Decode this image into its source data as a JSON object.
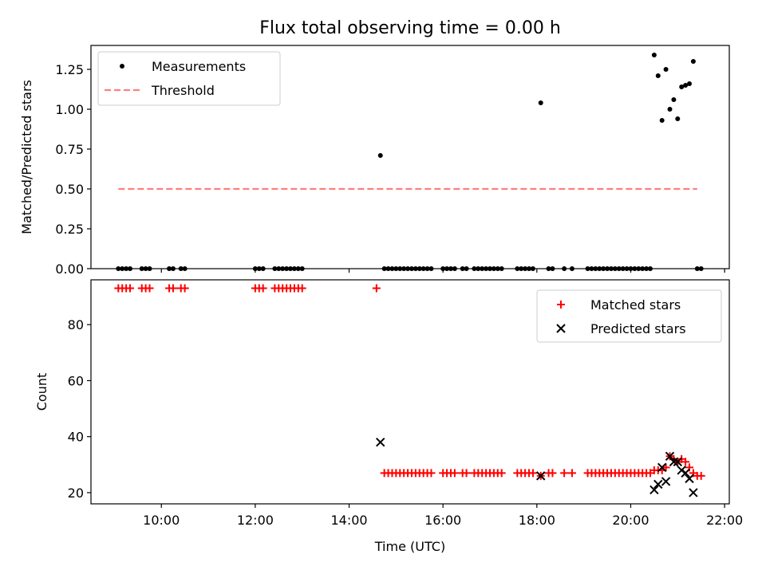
{
  "title": "Flux total observing time = 0.00 h",
  "chart_data": [
    {
      "type": "scatter",
      "title": "Flux total observing time = 0.00 h",
      "xlabel": "",
      "ylabel": "Matched/Predicted stars",
      "xlim": [
        "08:30",
        "22:06"
      ],
      "ylim": [
        0,
        1.4
      ],
      "yticks": [
        "0.00",
        "0.25",
        "0.50",
        "0.75",
        "1.00",
        "1.25"
      ],
      "legend_position": "top-left",
      "grid": false,
      "series": [
        {
          "name": "Measurements",
          "marker": "dot",
          "color": "#000000",
          "points": [
            [
              "09:05",
              0
            ],
            [
              "09:10",
              0
            ],
            [
              "09:15",
              0
            ],
            [
              "09:20",
              0
            ],
            [
              "09:35",
              0
            ],
            [
              "09:40",
              0
            ],
            [
              "09:45",
              0
            ],
            [
              "10:10",
              0
            ],
            [
              "10:15",
              0
            ],
            [
              "10:25",
              0
            ],
            [
              "10:30",
              0
            ],
            [
              "12:00",
              0
            ],
            [
              "12:05",
              0
            ],
            [
              "12:10",
              0
            ],
            [
              "12:25",
              0
            ],
            [
              "12:30",
              0
            ],
            [
              "12:35",
              0
            ],
            [
              "12:40",
              0
            ],
            [
              "12:45",
              0
            ],
            [
              "12:50",
              0
            ],
            [
              "12:55",
              0
            ],
            [
              "13:00",
              0
            ],
            [
              "14:40",
              0.71
            ],
            [
              "14:45",
              0
            ],
            [
              "14:50",
              0
            ],
            [
              "14:55",
              0
            ],
            [
              "15:00",
              0
            ],
            [
              "15:05",
              0
            ],
            [
              "15:10",
              0
            ],
            [
              "15:15",
              0
            ],
            [
              "15:20",
              0
            ],
            [
              "15:25",
              0
            ],
            [
              "15:30",
              0
            ],
            [
              "15:35",
              0
            ],
            [
              "15:40",
              0
            ],
            [
              "15:45",
              0
            ],
            [
              "16:00",
              0
            ],
            [
              "16:05",
              0
            ],
            [
              "16:10",
              0
            ],
            [
              "16:15",
              0
            ],
            [
              "16:25",
              0
            ],
            [
              "16:30",
              0
            ],
            [
              "16:40",
              0
            ],
            [
              "16:45",
              0
            ],
            [
              "16:50",
              0
            ],
            [
              "16:55",
              0
            ],
            [
              "17:00",
              0
            ],
            [
              "17:05",
              0
            ],
            [
              "17:10",
              0
            ],
            [
              "17:15",
              0
            ],
            [
              "17:35",
              0
            ],
            [
              "17:40",
              0
            ],
            [
              "17:45",
              0
            ],
            [
              "17:50",
              0
            ],
            [
              "17:55",
              0
            ],
            [
              "18:05",
              1.04
            ],
            [
              "18:15",
              0
            ],
            [
              "18:20",
              0
            ],
            [
              "18:35",
              0
            ],
            [
              "18:45",
              0
            ],
            [
              "19:05",
              0
            ],
            [
              "19:10",
              0
            ],
            [
              "19:15",
              0
            ],
            [
              "19:20",
              0
            ],
            [
              "19:25",
              0
            ],
            [
              "19:30",
              0
            ],
            [
              "19:35",
              0
            ],
            [
              "19:40",
              0
            ],
            [
              "19:45",
              0
            ],
            [
              "19:50",
              0
            ],
            [
              "19:55",
              0
            ],
            [
              "20:00",
              0
            ],
            [
              "20:05",
              0
            ],
            [
              "20:10",
              0
            ],
            [
              "20:15",
              0
            ],
            [
              "20:20",
              0
            ],
            [
              "20:25",
              0
            ],
            [
              "20:30",
              1.34
            ],
            [
              "20:35",
              1.21
            ],
            [
              "20:40",
              0.93
            ],
            [
              "20:45",
              1.25
            ],
            [
              "20:50",
              1.0
            ],
            [
              "20:55",
              1.06
            ],
            [
              "21:00",
              0.94
            ],
            [
              "21:05",
              1.14
            ],
            [
              "21:10",
              1.15
            ],
            [
              "21:15",
              1.16
            ],
            [
              "21:20",
              1.3
            ],
            [
              "21:25",
              0
            ],
            [
              "21:30",
              0
            ]
          ]
        },
        {
          "name": "Threshold",
          "marker": "dashed-line",
          "color": "#ff7f7f",
          "points": [
            [
              "09:05",
              0.5
            ],
            [
              "21:25",
              0.5
            ]
          ]
        }
      ]
    },
    {
      "type": "scatter",
      "xlabel": "Time (UTC)",
      "ylabel": "Count",
      "xlim": [
        "08:30",
        "22:06"
      ],
      "ylim": [
        16,
        96
      ],
      "xticks": [
        "10:00",
        "12:00",
        "14:00",
        "16:00",
        "18:00",
        "20:00",
        "22:00"
      ],
      "yticks": [
        "20",
        "40",
        "60",
        "80"
      ],
      "legend_position": "top-right",
      "grid": false,
      "series": [
        {
          "name": "Matched stars",
          "marker": "plus",
          "color": "#ff0000",
          "points": [
            [
              "09:05",
              93
            ],
            [
              "09:10",
              93
            ],
            [
              "09:15",
              93
            ],
            [
              "09:20",
              93
            ],
            [
              "09:35",
              93
            ],
            [
              "09:40",
              93
            ],
            [
              "09:45",
              93
            ],
            [
              "10:10",
              93
            ],
            [
              "10:15",
              93
            ],
            [
              "10:25",
              93
            ],
            [
              "10:30",
              93
            ],
            [
              "12:00",
              93
            ],
            [
              "12:05",
              93
            ],
            [
              "12:10",
              93
            ],
            [
              "12:25",
              93
            ],
            [
              "12:30",
              93
            ],
            [
              "12:35",
              93
            ],
            [
              "12:40",
              93
            ],
            [
              "12:45",
              93
            ],
            [
              "12:50",
              93
            ],
            [
              "12:55",
              93
            ],
            [
              "13:00",
              93
            ],
            [
              "14:35",
              93
            ],
            [
              "14:45",
              27
            ],
            [
              "14:50",
              27
            ],
            [
              "14:55",
              27
            ],
            [
              "15:00",
              27
            ],
            [
              "15:05",
              27
            ],
            [
              "15:10",
              27
            ],
            [
              "15:15",
              27
            ],
            [
              "15:20",
              27
            ],
            [
              "15:25",
              27
            ],
            [
              "15:30",
              27
            ],
            [
              "15:35",
              27
            ],
            [
              "15:40",
              27
            ],
            [
              "15:45",
              27
            ],
            [
              "16:00",
              27
            ],
            [
              "16:05",
              27
            ],
            [
              "16:10",
              27
            ],
            [
              "16:15",
              27
            ],
            [
              "16:25",
              27
            ],
            [
              "16:30",
              27
            ],
            [
              "16:40",
              27
            ],
            [
              "16:45",
              27
            ],
            [
              "16:50",
              27
            ],
            [
              "16:55",
              27
            ],
            [
              "17:00",
              27
            ],
            [
              "17:05",
              27
            ],
            [
              "17:10",
              27
            ],
            [
              "17:15",
              27
            ],
            [
              "17:35",
              27
            ],
            [
              "17:40",
              27
            ],
            [
              "17:45",
              27
            ],
            [
              "17:50",
              27
            ],
            [
              "17:55",
              27
            ],
            [
              "18:05",
              26
            ],
            [
              "18:15",
              27
            ],
            [
              "18:20",
              27
            ],
            [
              "18:35",
              27
            ],
            [
              "18:45",
              27
            ],
            [
              "19:05",
              27
            ],
            [
              "19:10",
              27
            ],
            [
              "19:15",
              27
            ],
            [
              "19:20",
              27
            ],
            [
              "19:25",
              27
            ],
            [
              "19:30",
              27
            ],
            [
              "19:35",
              27
            ],
            [
              "19:40",
              27
            ],
            [
              "19:45",
              27
            ],
            [
              "19:50",
              27
            ],
            [
              "19:55",
              27
            ],
            [
              "20:00",
              27
            ],
            [
              "20:05",
              27
            ],
            [
              "20:10",
              27
            ],
            [
              "20:15",
              27
            ],
            [
              "20:20",
              27
            ],
            [
              "20:25",
              27
            ],
            [
              "20:30",
              28
            ],
            [
              "20:35",
              28
            ],
            [
              "20:40",
              28
            ],
            [
              "20:45",
              29
            ],
            [
              "20:50",
              33
            ],
            [
              "20:55",
              32
            ],
            [
              "21:00",
              31
            ],
            [
              "21:05",
              32
            ],
            [
              "21:10",
              31
            ],
            [
              "21:15",
              29
            ],
            [
              "21:20",
              27
            ],
            [
              "21:25",
              26
            ],
            [
              "21:30",
              26
            ]
          ]
        },
        {
          "name": "Predicted stars",
          "marker": "x",
          "color": "#000000",
          "points": [
            [
              "14:40",
              38
            ],
            [
              "18:05",
              26
            ],
            [
              "20:30",
              21
            ],
            [
              "20:35",
              23
            ],
            [
              "20:40",
              29
            ],
            [
              "20:45",
              24
            ],
            [
              "20:50",
              33
            ],
            [
              "20:55",
              31
            ],
            [
              "21:00",
              31
            ],
            [
              "21:05",
              28
            ],
            [
              "21:10",
              27
            ],
            [
              "21:15",
              25
            ],
            [
              "21:20",
              20
            ]
          ]
        }
      ]
    }
  ]
}
